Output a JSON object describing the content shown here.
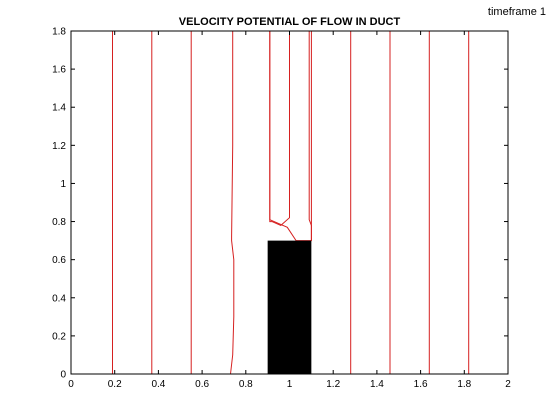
{
  "header": {
    "timeframe_label": "timeframe 1"
  },
  "chart_data": {
    "type": "line",
    "title": "VELOCITY POTENTIAL OF FLOW IN DUCT",
    "xlabel": "",
    "ylabel": "",
    "xlim": [
      0,
      2
    ],
    "ylim": [
      0,
      1.8
    ],
    "x_ticks": [
      0,
      0.2,
      0.4,
      0.6,
      0.8,
      1,
      1.2,
      1.4,
      1.6,
      1.8,
      2
    ],
    "x_tick_labels": [
      "0",
      "0.2",
      "0.4",
      "0.6",
      "0.8",
      "1",
      "1.2",
      "1.4",
      "1.6",
      "1.8",
      "2"
    ],
    "y_ticks": [
      0,
      0.2,
      0.4,
      0.6,
      0.8,
      1,
      1.2,
      1.4,
      1.6,
      1.8
    ],
    "y_tick_labels": [
      "0",
      "0.2",
      "0.4",
      "0.6",
      "0.8",
      "1",
      "1.2",
      "1.4",
      "1.6",
      "1.8"
    ],
    "grid": false,
    "line_color": "#d62020",
    "obstacle": {
      "x_range": [
        0.9,
        1.1
      ],
      "y_range": [
        0,
        0.7
      ],
      "color": "#000000"
    },
    "contours": [
      {
        "x": [
          0.19,
          0.19
        ],
        "y": [
          0,
          1.8
        ]
      },
      {
        "x": [
          0.37,
          0.37
        ],
        "y": [
          0,
          1.8
        ]
      },
      {
        "x": [
          0.55,
          0.55
        ],
        "y": [
          0,
          1.8
        ]
      },
      {
        "x": [
          0.73,
          0.74,
          0.745,
          0.745,
          0.735,
          0.735,
          0.74,
          0.74
        ],
        "y": [
          0,
          0.1,
          0.3,
          0.6,
          0.7,
          0.72,
          1.2,
          1.8
        ]
      },
      {
        "x": [
          1.0,
          1.0,
          0.96,
          0.92,
          0.91,
          0.91
        ],
        "y": [
          1.8,
          0.82,
          0.78,
          0.8,
          0.8,
          1.8
        ]
      },
      {
        "x": [
          0.91,
          0.91,
          0.99,
          1.03,
          1.1,
          1.1
        ],
        "y": [
          1.8,
          0.81,
          0.77,
          0.7,
          0.7,
          1.8
        ]
      },
      {
        "x": [
          1.09,
          1.09,
          1.1,
          1.1
        ],
        "y": [
          1.8,
          0.81,
          0.78,
          0.7
        ]
      },
      {
        "x": [
          1.28,
          1.28
        ],
        "y": [
          0,
          1.8
        ]
      },
      {
        "x": [
          1.46,
          1.46
        ],
        "y": [
          0,
          1.8
        ]
      },
      {
        "x": [
          1.64,
          1.64
        ],
        "y": [
          0,
          1.8
        ]
      },
      {
        "x": [
          1.82,
          1.82
        ],
        "y": [
          0,
          1.8
        ]
      }
    ]
  }
}
